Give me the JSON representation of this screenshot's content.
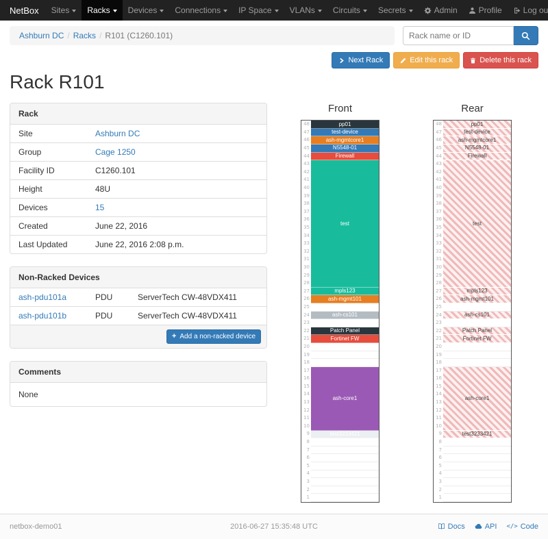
{
  "navbar": {
    "brand": "NetBox",
    "items": [
      "Sites",
      "Racks",
      "Devices",
      "Connections",
      "IP Space",
      "VLANs",
      "Circuits",
      "Secrets"
    ],
    "active": "Racks",
    "right": [
      {
        "label": "Admin",
        "icon": "gear-icon"
      },
      {
        "label": "Profile",
        "icon": "user-icon"
      },
      {
        "label": "Log out",
        "icon": "logout-icon"
      }
    ]
  },
  "breadcrumb": {
    "items": [
      "Ashburn DC",
      "Racks",
      "R101 (C1260.101)"
    ]
  },
  "search": {
    "placeholder": "Rack name or ID"
  },
  "actions": {
    "next_label": "Next Rack",
    "edit_label": "Edit this rack",
    "delete_label": "Delete this rack"
  },
  "page_title": "Rack R101",
  "rack_panel": {
    "title": "Rack",
    "rows": [
      {
        "label": "Site",
        "value": "Ashburn DC",
        "link": true
      },
      {
        "label": "Group",
        "value": "Cage 1250",
        "link": true
      },
      {
        "label": "Facility ID",
        "value": "C1260.101"
      },
      {
        "label": "Height",
        "value": "48U"
      },
      {
        "label": "Devices",
        "value": "15",
        "link": true
      },
      {
        "label": "Created",
        "value": "June 22, 2016"
      },
      {
        "label": "Last Updated",
        "value": "June 22, 2016 2:08 p.m."
      }
    ]
  },
  "nonracked_panel": {
    "title": "Non-Racked Devices",
    "devices": [
      {
        "name": "ash-pdu101a",
        "role": "PDU",
        "type": "ServerTech CW-48VDX411"
      },
      {
        "name": "ash-pdu101b",
        "role": "PDU",
        "type": "ServerTech CW-48VDX411"
      }
    ],
    "add_label": "Add a non-racked device"
  },
  "comments_panel": {
    "title": "Comments",
    "body": "None"
  },
  "elevations": {
    "front_label": "Front",
    "rear_label": "Rear",
    "top_unit": 48,
    "slots": [
      {
        "name": "pp01",
        "span": 1,
        "color": "#29363d",
        "fg": "#ffffff"
      },
      {
        "name": "test-device",
        "span": 1,
        "color": "#337ab7",
        "fg": "#ffffff"
      },
      {
        "name": "ash-mgmtcore1",
        "span": 1,
        "color": "#e67e22",
        "fg": "#ffffff"
      },
      {
        "name": "N5548-01",
        "span": 1,
        "color": "#337ab7",
        "fg": "#ffffff"
      },
      {
        "name": "Firewall",
        "span": 1,
        "color": "#e74c3c",
        "fg": "#ffffff"
      },
      {
        "name": "test",
        "span": 16,
        "color": "#18bc9c",
        "fg": "#ffffff"
      },
      {
        "name": "mpls123",
        "span": 1,
        "color": "#18bc9c",
        "fg": "#ffffff"
      },
      {
        "name": "ash-mgmt101",
        "span": 1,
        "color": "#e67e22",
        "fg": "#ffffff"
      },
      {
        "empty": true,
        "span": 1
      },
      {
        "name": "ash-cs101",
        "span": 1,
        "color": "#b4bcc2",
        "fg": "#ffffff"
      },
      {
        "empty": true,
        "span": 1
      },
      {
        "name": "Patch Panel",
        "span": 1,
        "color": "#29363d",
        "fg": "#ffffff"
      },
      {
        "name": "Fortinet FW",
        "span": 1,
        "color": "#e74c3c",
        "fg": "#ffffff"
      },
      {
        "empty": true,
        "span": 3
      },
      {
        "name": "ash-core1",
        "span": 8,
        "color": "#9b59b6",
        "fg": "#ffffff"
      },
      {
        "name": "test3233421",
        "span": 1,
        "color": "#eceff1",
        "fg": "#ffffff"
      },
      {
        "empty": true,
        "span": 8
      }
    ]
  },
  "footer": {
    "hostname": "netbox-demo01",
    "timestamp": "2016-06-27 15:35:48 UTC",
    "links": [
      {
        "label": "Docs",
        "icon": "book-icon"
      },
      {
        "label": "API",
        "icon": "cloud-icon"
      },
      {
        "label": "Code",
        "icon": "code-icon"
      }
    ]
  }
}
